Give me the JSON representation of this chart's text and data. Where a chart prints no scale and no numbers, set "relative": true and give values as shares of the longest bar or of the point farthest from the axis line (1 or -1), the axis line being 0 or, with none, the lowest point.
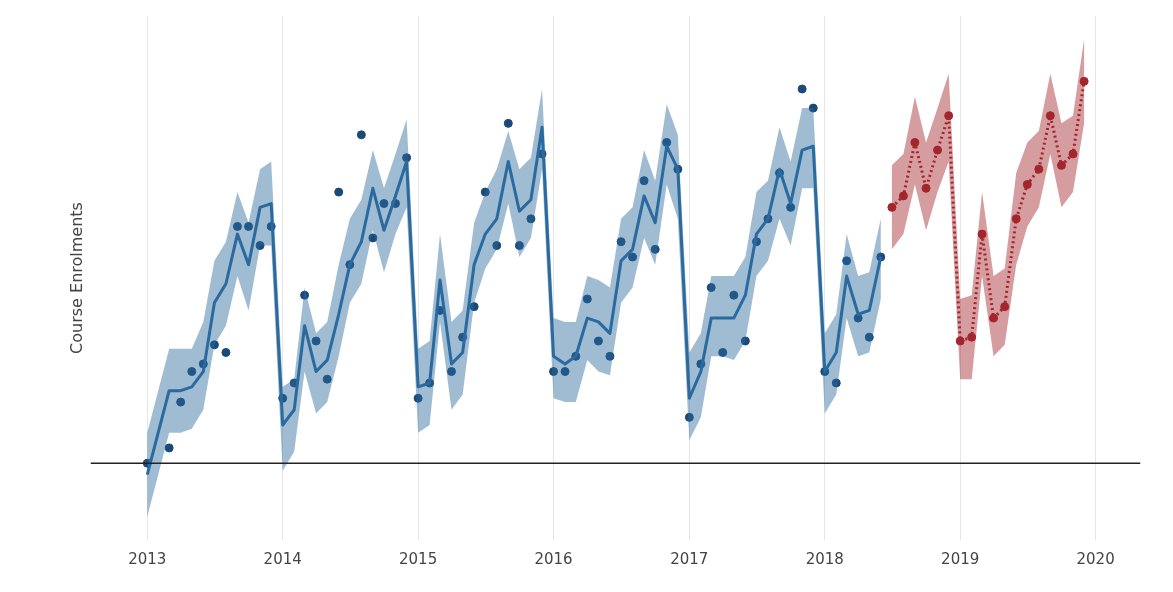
{
  "chart_data": {
    "type": "line",
    "relative": true,
    "ylabel": "Course Enrolments",
    "xlim": [
      "2012-08",
      "2020-05"
    ],
    "xticks": [
      "2013",
      "2014",
      "2015",
      "2016",
      "2017",
      "2018",
      "2019",
      "2020"
    ],
    "grid": "x",
    "series": [
      {
        "type": "scatter",
        "color": "#1b4a7a",
        "marker": "circle",
        "x": [
          "2013-01",
          "2013-03",
          "2013-04",
          "2013-05",
          "2013-06",
          "2013-07",
          "2013-08",
          "2013-09",
          "2013-10",
          "2013-11",
          "2013-12",
          "2014-01",
          "2014-02",
          "2014-03",
          "2014-04",
          "2014-05",
          "2014-06",
          "2014-07",
          "2014-08",
          "2014-09",
          "2014-10",
          "2014-11",
          "2014-12",
          "2015-01",
          "2015-02",
          "2015-03",
          "2015-04",
          "2015-05",
          "2015-06",
          "2015-07",
          "2015-08",
          "2015-09",
          "2015-10",
          "2015-11",
          "2015-12",
          "2016-01",
          "2016-02",
          "2016-03",
          "2016-04",
          "2016-05",
          "2016-06",
          "2016-07",
          "2016-08",
          "2016-09",
          "2016-10",
          "2016-11",
          "2016-12",
          "2017-01",
          "2017-02",
          "2017-03",
          "2017-04",
          "2017-05",
          "2017-06",
          "2017-07",
          "2017-08",
          "2017-09",
          "2017-10",
          "2017-11",
          "2017-12",
          "2018-01",
          "2018-02",
          "2018-03",
          "2018-04",
          "2018-05",
          "2018-06"
        ],
        "values": [
          0,
          0.04,
          0.16,
          0.24,
          0.26,
          0.31,
          0.29,
          0.62,
          0.62,
          0.57,
          0.62,
          0.17,
          0.21,
          0.44,
          0.32,
          0.22,
          0.71,
          0.52,
          0.86,
          0.59,
          0.68,
          0.68,
          0.8,
          0.17,
          0.21,
          0.4,
          0.24,
          0.33,
          0.41,
          0.71,
          0.57,
          0.89,
          0.57,
          0.64,
          0.81,
          0.24,
          0.24,
          0.28,
          0.43,
          0.32,
          0.28,
          0.58,
          0.54,
          0.74,
          0.56,
          0.84,
          0.77,
          0.12,
          0.26,
          0.46,
          0.29,
          0.44,
          0.32,
          0.58,
          0.64,
          0.76,
          0.67,
          0.98,
          0.93,
          0.24,
          0.21,
          0.53,
          0.38,
          0.33,
          0.54
        ]
      },
      {
        "color": "#2a6a9e",
        "line_style": "solid",
        "x": [
          "2013-01",
          "2013-03",
          "2013-04",
          "2013-05",
          "2013-06",
          "2013-07",
          "2013-08",
          "2013-09",
          "2013-10",
          "2013-11",
          "2013-12",
          "2014-01",
          "2014-02",
          "2014-03",
          "2014-04",
          "2014-05",
          "2014-06",
          "2014-07",
          "2014-08",
          "2014-09",
          "2014-10",
          "2014-11",
          "2014-12",
          "2015-01",
          "2015-02",
          "2015-03",
          "2015-04",
          "2015-05",
          "2015-06",
          "2015-07",
          "2015-08",
          "2015-09",
          "2015-10",
          "2015-11",
          "2015-12",
          "2016-01",
          "2016-02",
          "2016-03",
          "2016-04",
          "2016-05",
          "2016-06",
          "2016-07",
          "2016-08",
          "2016-09",
          "2016-10",
          "2016-11",
          "2016-12",
          "2017-01",
          "2017-02",
          "2017-03",
          "2017-04",
          "2017-05",
          "2017-06",
          "2017-07",
          "2017-08",
          "2017-09",
          "2017-10",
          "2017-11",
          "2017-12",
          "2018-01",
          "2018-02",
          "2018-03",
          "2018-04",
          "2018-05",
          "2018-06"
        ],
        "values": [
          -0.03,
          0.19,
          0.19,
          0.2,
          0.24,
          0.42,
          0.47,
          0.6,
          0.52,
          0.67,
          0.68,
          0.1,
          0.14,
          0.36,
          0.24,
          0.27,
          0.39,
          0.52,
          0.58,
          0.72,
          0.61,
          0.7,
          0.79,
          0.2,
          0.21,
          0.48,
          0.26,
          0.29,
          0.52,
          0.6,
          0.64,
          0.79,
          0.66,
          0.69,
          0.88,
          0.28,
          0.26,
          0.28,
          0.38,
          0.37,
          0.34,
          0.53,
          0.56,
          0.7,
          0.63,
          0.83,
          0.77,
          0.17,
          0.24,
          0.38,
          0.38,
          0.38,
          0.44,
          0.6,
          0.64,
          0.77,
          0.68,
          0.82,
          0.83,
          0.24,
          0.29,
          0.49,
          0.39,
          0.4,
          0.54
        ],
        "upper": [
          0.08,
          0.3,
          0.3,
          0.3,
          0.37,
          0.53,
          0.58,
          0.71,
          0.63,
          0.77,
          0.79,
          0.2,
          0.22,
          0.46,
          0.34,
          0.37,
          0.52,
          0.64,
          0.69,
          0.82,
          0.72,
          0.81,
          0.9,
          0.3,
          0.32,
          0.6,
          0.37,
          0.4,
          0.63,
          0.71,
          0.77,
          0.87,
          0.77,
          0.8,
          0.98,
          0.38,
          0.37,
          0.37,
          0.49,
          0.48,
          0.46,
          0.64,
          0.67,
          0.82,
          0.74,
          0.94,
          0.86,
          0.29,
          0.34,
          0.49,
          0.49,
          0.49,
          0.54,
          0.71,
          0.74,
          0.88,
          0.79,
          0.93,
          0.93,
          0.34,
          0.39,
          0.6,
          0.49,
          0.5,
          0.64
        ],
        "lower": [
          -0.14,
          0.08,
          0.08,
          0.09,
          0.14,
          0.31,
          0.36,
          0.49,
          0.4,
          0.57,
          0.57,
          -0.02,
          0.03,
          0.24,
          0.13,
          0.16,
          0.28,
          0.42,
          0.47,
          0.61,
          0.5,
          0.6,
          0.67,
          0.08,
          0.1,
          0.37,
          0.14,
          0.18,
          0.42,
          0.51,
          0.56,
          0.68,
          0.54,
          0.59,
          0.77,
          0.17,
          0.16,
          0.16,
          0.27,
          0.24,
          0.23,
          0.42,
          0.46,
          0.59,
          0.52,
          0.73,
          0.64,
          0.06,
          0.12,
          0.28,
          0.28,
          0.27,
          0.32,
          0.49,
          0.53,
          0.64,
          0.57,
          0.72,
          0.72,
          0.13,
          0.18,
          0.38,
          0.28,
          0.29,
          0.43
        ]
      },
      {
        "color": "#a3262c",
        "line_style": "dotted",
        "marker": "circle",
        "x": [
          "2018-07",
          "2018-08",
          "2018-09",
          "2018-10",
          "2018-11",
          "2018-12",
          "2019-01",
          "2019-02",
          "2019-03",
          "2019-04",
          "2019-05",
          "2019-06",
          "2019-07",
          "2019-08",
          "2019-09",
          "2019-10",
          "2019-11",
          "2019-12"
        ],
        "values": [
          0.67,
          0.7,
          0.84,
          0.72,
          0.82,
          0.91,
          0.32,
          0.33,
          0.6,
          0.38,
          0.41,
          0.64,
          0.73,
          0.77,
          0.91,
          0.78,
          0.81,
          1
        ],
        "upper": [
          0.78,
          0.81,
          0.96,
          0.84,
          0.93,
          1.02,
          0.43,
          0.44,
          0.71,
          0.49,
          0.51,
          0.76,
          0.84,
          0.87,
          1.02,
          0.89,
          0.91,
          1.11
        ],
        "lower": [
          0.56,
          0.6,
          0.73,
          0.61,
          0.71,
          0.79,
          0.22,
          0.22,
          0.49,
          0.28,
          0.31,
          0.52,
          0.62,
          0.67,
          0.81,
          0.67,
          0.71,
          0.89
        ]
      }
    ]
  }
}
